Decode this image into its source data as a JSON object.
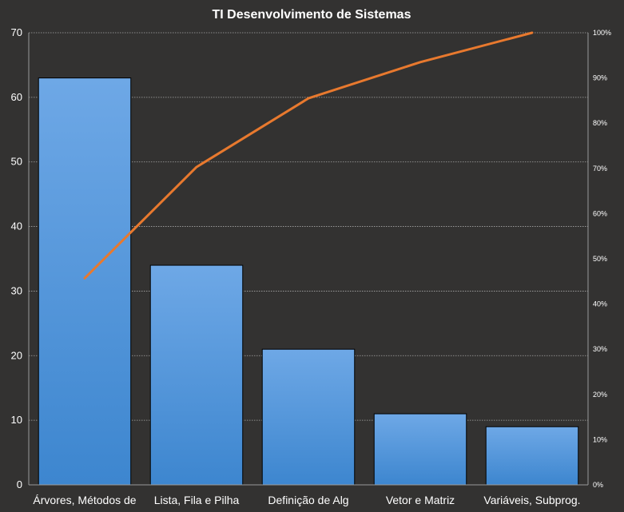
{
  "chart_data": {
    "type": "bar",
    "title": "TI Desenvolvimento  de Sistemas",
    "categories": [
      "Árvores, Métodos de",
      "Lista, Fila e Pilha",
      "Definição de Alg",
      "Vetor e Matriz",
      "Variáveis, Subprog."
    ],
    "values": [
      63,
      34,
      21,
      11,
      9
    ],
    "ylim": [
      0,
      70
    ],
    "yticks": [
      "0",
      "10",
      "20",
      "30",
      "40",
      "50",
      "60",
      "70"
    ],
    "cumulative_percent": [
      45.7,
      70.3,
      85.5,
      93.5,
      100
    ],
    "y2lim": [
      0,
      100
    ],
    "y2ticks": [
      "0%",
      "10%",
      "20%",
      "30%",
      "40%",
      "50%",
      "60%",
      "70%",
      "80%",
      "90%",
      "100%"
    ],
    "grid": true,
    "bar_color": "#4a8fd6",
    "line_color": "#e8792e"
  }
}
